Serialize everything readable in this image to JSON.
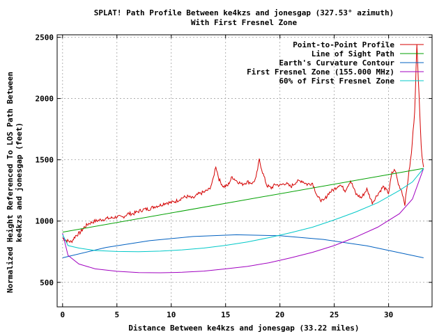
{
  "chart_data": {
    "type": "line",
    "title": "SPLAT! Path Profile Between ke4kzs and jonesgap (327.53° azimuth)",
    "subtitle": "With First Fresnel Zone",
    "xlabel": "Distance Between ke4kzs and jonesgap (33.22 miles)",
    "ylabel": "Normalized Height Referenced To LOS Path Between",
    "ylabel2": "ke4kzs and jonesgap (feet)",
    "xlim": [
      -0.5,
      34
    ],
    "ylim": [
      300,
      2520
    ],
    "xticks": [
      0,
      5,
      10,
      15,
      20,
      25,
      30
    ],
    "yticks": [
      500,
      1000,
      1500,
      2000,
      2500
    ],
    "grid": true,
    "legend_position": "top-right",
    "series": [
      {
        "name": "Point-to-Point Profile",
        "color": "#d40000",
        "noisy": true,
        "points": [
          [
            0,
            860
          ],
          [
            0.4,
            840
          ],
          [
            0.8,
            830
          ],
          [
            1.2,
            880
          ],
          [
            1.6,
            905
          ],
          [
            2,
            950
          ],
          [
            2.4,
            980
          ],
          [
            3,
            1000
          ],
          [
            3.5,
            1010
          ],
          [
            4,
            1020
          ],
          [
            4.5,
            1025
          ],
          [
            5,
            1035
          ],
          [
            5.5,
            1030
          ],
          [
            6,
            1060
          ],
          [
            6.5,
            1060
          ],
          [
            7,
            1080
          ],
          [
            7.5,
            1095
          ],
          [
            8,
            1100
          ],
          [
            8.5,
            1120
          ],
          [
            9,
            1130
          ],
          [
            9.5,
            1150
          ],
          [
            10,
            1150
          ],
          [
            10.5,
            1165
          ],
          [
            11,
            1190
          ],
          [
            11.5,
            1200
          ],
          [
            12,
            1185
          ],
          [
            12.5,
            1220
          ],
          [
            13,
            1235
          ],
          [
            13.5,
            1260
          ],
          [
            13.8,
            1320
          ],
          [
            14.1,
            1450
          ],
          [
            14.4,
            1340
          ],
          [
            14.8,
            1280
          ],
          [
            15.2,
            1290
          ],
          [
            15.6,
            1360
          ],
          [
            16,
            1330
          ],
          [
            16.5,
            1300
          ],
          [
            17,
            1320
          ],
          [
            17.5,
            1310
          ],
          [
            17.8,
            1350
          ],
          [
            18.1,
            1500
          ],
          [
            18.4,
            1400
          ],
          [
            18.8,
            1290
          ],
          [
            19.2,
            1270
          ],
          [
            19.6,
            1300
          ],
          [
            20,
            1290
          ],
          [
            20.5,
            1310
          ],
          [
            21,
            1280
          ],
          [
            21.5,
            1320
          ],
          [
            22,
            1330
          ],
          [
            22.5,
            1300
          ],
          [
            23,
            1310
          ],
          [
            23.5,
            1190
          ],
          [
            24,
            1160
          ],
          [
            24.5,
            1230
          ],
          [
            25,
            1260
          ],
          [
            25.5,
            1300
          ],
          [
            26,
            1250
          ],
          [
            26.5,
            1330
          ],
          [
            27,
            1220
          ],
          [
            27.5,
            1190
          ],
          [
            28,
            1260
          ],
          [
            28.5,
            1150
          ],
          [
            29,
            1220
          ],
          [
            29.5,
            1280
          ],
          [
            30,
            1230
          ],
          [
            30.3,
            1390
          ],
          [
            30.6,
            1420
          ],
          [
            30.9,
            1300
          ],
          [
            31.2,
            1250
          ],
          [
            31.5,
            1140
          ],
          [
            31.8,
            1350
          ],
          [
            32.1,
            1550
          ],
          [
            32.4,
            1900
          ],
          [
            32.6,
            2430
          ],
          [
            32.8,
            2050
          ],
          [
            33,
            1600
          ],
          [
            33.22,
            1440
          ]
        ]
      },
      {
        "name": "Line of Sight Path",
        "color": "#00a000",
        "points": [
          [
            0,
            910
          ],
          [
            33.22,
            1430
          ]
        ]
      },
      {
        "name": "Earth's Curvature Contour",
        "color": "#0060c0",
        "points": [
          [
            0,
            700
          ],
          [
            4,
            785
          ],
          [
            8,
            840
          ],
          [
            12,
            874
          ],
          [
            16,
            888
          ],
          [
            20,
            880
          ],
          [
            24,
            850
          ],
          [
            28,
            798
          ],
          [
            33.22,
            700
          ]
        ]
      },
      {
        "name": "First Fresnel Zone (155.000 MHz)",
        "color": "#a000c0",
        "points": [
          [
            0,
            900
          ],
          [
            0.5,
            720
          ],
          [
            1.5,
            650
          ],
          [
            3,
            610
          ],
          [
            5,
            590
          ],
          [
            7,
            580
          ],
          [
            9,
            578
          ],
          [
            11,
            582
          ],
          [
            13,
            592
          ],
          [
            15,
            610
          ],
          [
            17,
            630
          ],
          [
            19,
            660
          ],
          [
            21,
            700
          ],
          [
            23,
            745
          ],
          [
            25,
            800
          ],
          [
            27,
            870
          ],
          [
            29,
            950
          ],
          [
            31,
            1060
          ],
          [
            32.2,
            1180
          ],
          [
            33.22,
            1430
          ]
        ]
      },
      {
        "name": "60% of First Fresnel Zone",
        "color": "#00c8c8",
        "points": [
          [
            0,
            890
          ],
          [
            0.5,
            800
          ],
          [
            1.5,
            780
          ],
          [
            3,
            760
          ],
          [
            5,
            752
          ],
          [
            7,
            750
          ],
          [
            9,
            755
          ],
          [
            11,
            765
          ],
          [
            13,
            780
          ],
          [
            15,
            802
          ],
          [
            17,
            830
          ],
          [
            19,
            865
          ],
          [
            21,
            905
          ],
          [
            23,
            950
          ],
          [
            25,
            1010
          ],
          [
            27,
            1075
          ],
          [
            29,
            1150
          ],
          [
            31,
            1250
          ],
          [
            32.2,
            1320
          ],
          [
            33.22,
            1430
          ]
        ]
      }
    ]
  }
}
